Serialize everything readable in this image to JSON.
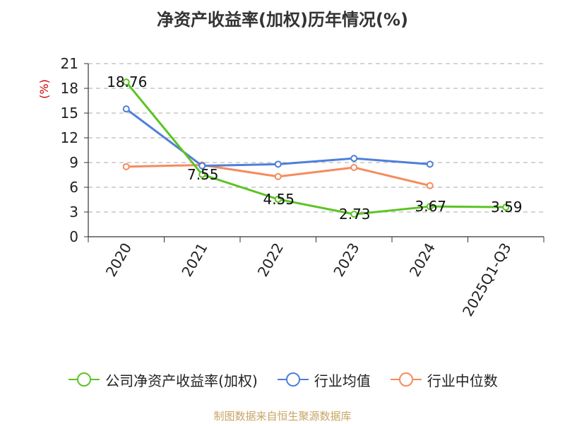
{
  "chart_data": {
    "type": "line",
    "title": "净资产收益率(加权)历年情况(%)",
    "ylabel": "(%)",
    "xlabel": "",
    "categories": [
      "2020",
      "2021",
      "2022",
      "2023",
      "2024",
      "2025Q1-Q3"
    ],
    "ylim": [
      0,
      21
    ],
    "yticks": [
      0,
      3,
      6,
      9,
      12,
      15,
      18,
      21
    ],
    "grid": "horizontal dashed",
    "legend_position": "bottom",
    "series": [
      {
        "name": "公司净资产收益率(加权)",
        "color": "#5cc424",
        "values": [
          18.76,
          7.55,
          4.55,
          2.73,
          3.67,
          3.59
        ],
        "labels": [
          "18.76",
          "7.55",
          "4.55",
          "2.73",
          "3.67",
          "3.59"
        ]
      },
      {
        "name": "行业均值",
        "color": "#4f7fd9",
        "values": [
          15.5,
          8.6,
          8.8,
          9.5,
          8.8,
          null
        ]
      },
      {
        "name": "行业中位数",
        "color": "#f58b5c",
        "values": [
          8.5,
          8.7,
          7.3,
          8.4,
          6.2,
          null
        ]
      }
    ]
  },
  "source": "制图数据来自恒生聚源数据库"
}
